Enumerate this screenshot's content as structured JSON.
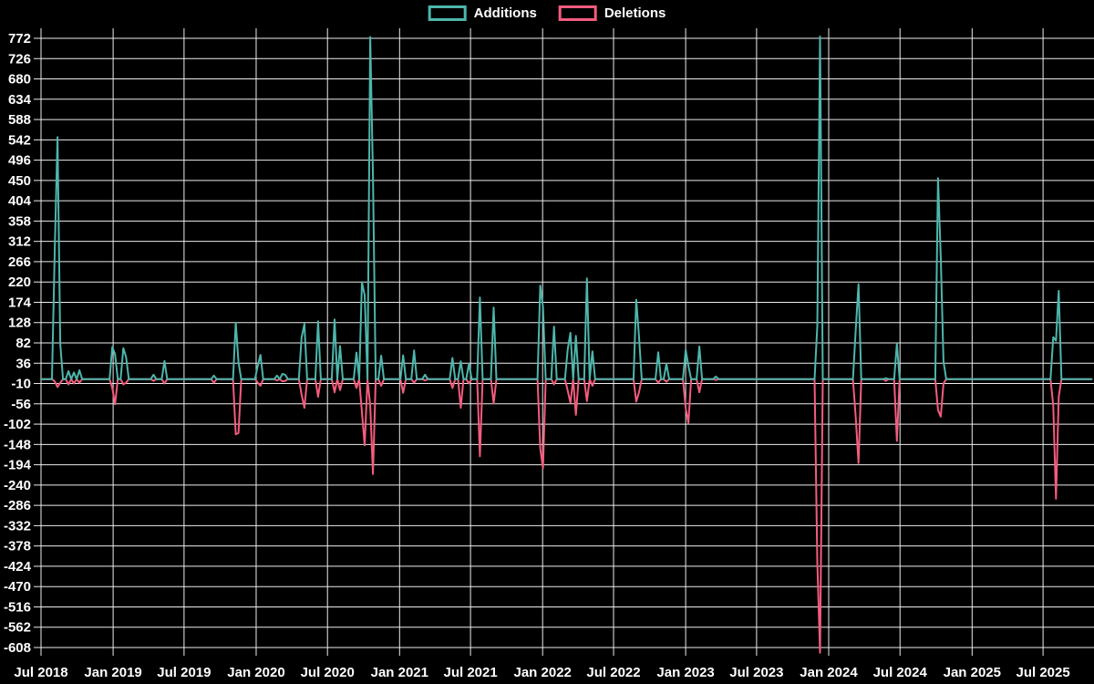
{
  "page": {
    "background": "#000000"
  },
  "chart_data": {
    "type": "line",
    "title": "",
    "legend_position": "top-center",
    "background": "#000000",
    "grid": {
      "color": "#ececec",
      "vertical_interval": "6 months",
      "horizontal_step": 46
    },
    "series": [
      {
        "name": "Additions",
        "color": "#4db6ac"
      },
      {
        "name": "Deletions",
        "color": "#f45c7d"
      }
    ],
    "x_axis": {
      "start": "2018-07",
      "end": "2025-11",
      "tick_labels": [
        "Jul 2018",
        "Jan 2019",
        "Jul 2019",
        "Jan 2020",
        "Jul 2020",
        "Jan 2021",
        "Jul 2021",
        "Jan 2022",
        "Jul 2022",
        "Jan 2023",
        "Jul 2023",
        "Jan 2024",
        "Jul 2024",
        "Jan 2025",
        "Jul 2025"
      ]
    },
    "y_axis": {
      "min": -608,
      "max": 772,
      "step": 46,
      "tick_labels": [
        772,
        726,
        680,
        634,
        588,
        542,
        496,
        450,
        404,
        358,
        312,
        266,
        220,
        174,
        128,
        82,
        36,
        -10,
        -56,
        -102,
        -148,
        -194,
        -240,
        -286,
        -332,
        -378,
        -424,
        -470,
        -516,
        -562,
        -608
      ]
    },
    "baseline_value": 0,
    "weekly_events": [
      {
        "date": "2018-08-05",
        "additions": 287,
        "deletions": -5
      },
      {
        "date": "2018-08-12",
        "additions": 548,
        "deletions": -18
      },
      {
        "date": "2018-08-19",
        "additions": 80,
        "deletions": -8
      },
      {
        "date": "2018-09-09",
        "additions": 18,
        "deletions": -12
      },
      {
        "date": "2018-09-23",
        "additions": 15,
        "deletions": -10
      },
      {
        "date": "2018-10-07",
        "additions": 20,
        "deletions": -8
      },
      {
        "date": "2018-12-30",
        "additions": 73,
        "deletions": -20
      },
      {
        "date": "2019-01-06",
        "additions": 56,
        "deletions": -57
      },
      {
        "date": "2019-01-27",
        "additions": 70,
        "deletions": -12
      },
      {
        "date": "2019-02-03",
        "additions": 50,
        "deletions": -8
      },
      {
        "date": "2019-04-14",
        "additions": 10,
        "deletions": -4
      },
      {
        "date": "2019-05-12",
        "additions": 41,
        "deletions": -10
      },
      {
        "date": "2019-09-15",
        "additions": 8,
        "deletions": -8
      },
      {
        "date": "2019-11-10",
        "additions": 128,
        "deletions": -125
      },
      {
        "date": "2019-11-17",
        "additions": 38,
        "deletions": -122
      },
      {
        "date": "2020-01-05",
        "additions": 30,
        "deletions": -8
      },
      {
        "date": "2020-01-12",
        "additions": 55,
        "deletions": -15
      },
      {
        "date": "2020-02-23",
        "additions": 8,
        "deletions": -3
      },
      {
        "date": "2020-03-08",
        "additions": 12,
        "deletions": -5
      },
      {
        "date": "2020-03-15",
        "additions": 10,
        "deletions": -4
      },
      {
        "date": "2020-04-26",
        "additions": 94,
        "deletions": -35
      },
      {
        "date": "2020-05-03",
        "additions": 125,
        "deletions": -65
      },
      {
        "date": "2020-06-07",
        "additions": 131,
        "deletions": -40
      },
      {
        "date": "2020-07-19",
        "additions": 135,
        "deletions": -30
      },
      {
        "date": "2020-08-02",
        "additions": 75,
        "deletions": -25
      },
      {
        "date": "2020-09-13",
        "additions": 60,
        "deletions": -20
      },
      {
        "date": "2020-09-27",
        "additions": 220,
        "deletions": -75
      },
      {
        "date": "2020-10-04",
        "additions": 190,
        "deletions": -150
      },
      {
        "date": "2020-10-18",
        "additions": 775,
        "deletions": -60
      },
      {
        "date": "2020-10-25",
        "additions": 460,
        "deletions": -215
      },
      {
        "date": "2020-11-15",
        "additions": 53,
        "deletions": -15
      },
      {
        "date": "2021-01-10",
        "additions": 54,
        "deletions": -31
      },
      {
        "date": "2021-02-07",
        "additions": 65,
        "deletions": -8
      },
      {
        "date": "2021-03-07",
        "additions": 10,
        "deletions": -3
      },
      {
        "date": "2021-05-16",
        "additions": 48,
        "deletions": -20
      },
      {
        "date": "2021-06-06",
        "additions": 40,
        "deletions": -65
      },
      {
        "date": "2021-06-27",
        "additions": 35,
        "deletions": -10
      },
      {
        "date": "2021-07-25",
        "additions": 185,
        "deletions": -175
      },
      {
        "date": "2021-08-29",
        "additions": 162,
        "deletions": -55
      },
      {
        "date": "2021-12-26",
        "additions": 212,
        "deletions": -157
      },
      {
        "date": "2022-01-02",
        "additions": 163,
        "deletions": -202
      },
      {
        "date": "2022-01-30",
        "additions": 119,
        "deletions": -12
      },
      {
        "date": "2022-03-06",
        "additions": 67,
        "deletions": -26
      },
      {
        "date": "2022-03-13",
        "additions": 105,
        "deletions": -54
      },
      {
        "date": "2022-03-27",
        "additions": 98,
        "deletions": -81
      },
      {
        "date": "2022-04-24",
        "additions": 228,
        "deletions": -50
      },
      {
        "date": "2022-05-08",
        "additions": 63,
        "deletions": -15
      },
      {
        "date": "2022-08-28",
        "additions": 180,
        "deletions": -51
      },
      {
        "date": "2022-09-04",
        "additions": 97,
        "deletions": -30
      },
      {
        "date": "2022-10-23",
        "additions": 61,
        "deletions": -8
      },
      {
        "date": "2022-11-13",
        "additions": 35,
        "deletions": -6
      },
      {
        "date": "2023-01-01",
        "additions": 66,
        "deletions": -65
      },
      {
        "date": "2023-01-08",
        "additions": 30,
        "deletions": -100
      },
      {
        "date": "2023-02-05",
        "additions": 74,
        "deletions": -30
      },
      {
        "date": "2023-03-19",
        "additions": 6,
        "deletions": -2
      },
      {
        "date": "2023-12-03",
        "additions": 120,
        "deletions": -415
      },
      {
        "date": "2023-12-10",
        "additions": 790,
        "deletions": -620
      },
      {
        "date": "2024-03-10",
        "additions": 110,
        "deletions": -85
      },
      {
        "date": "2024-03-17",
        "additions": 215,
        "deletions": -190
      },
      {
        "date": "2024-05-26",
        "additions": 2,
        "deletions": -4
      },
      {
        "date": "2024-06-23",
        "additions": 80,
        "deletions": -140
      },
      {
        "date": "2024-10-06",
        "additions": 455,
        "deletions": -70
      },
      {
        "date": "2024-10-13",
        "additions": 277,
        "deletions": -85
      },
      {
        "date": "2024-10-20",
        "additions": 40,
        "deletions": -10
      },
      {
        "date": "2025-07-27",
        "additions": 95,
        "deletions": -60
      },
      {
        "date": "2025-08-03",
        "additions": 87,
        "deletions": -271
      },
      {
        "date": "2025-08-10",
        "additions": 200,
        "deletions": -40
      }
    ]
  }
}
